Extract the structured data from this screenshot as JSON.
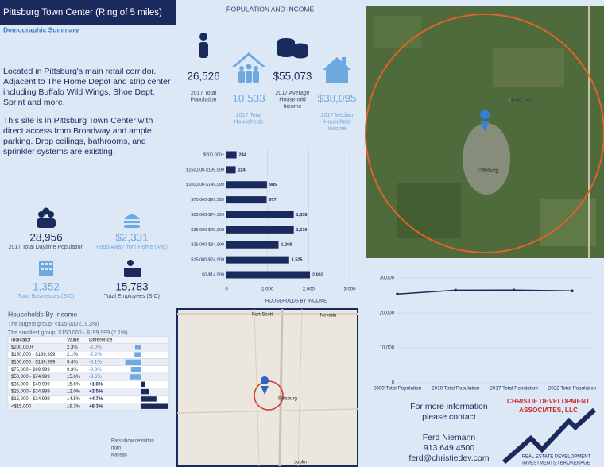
{
  "header": {
    "title": "Pittsburg Town Center (Ring of 5 miles)",
    "subtitle": "Demographic Summary"
  },
  "description": [
    [
      "Located in Pittsburg's main retail corridor.",
      "Adjacent to The Home Depot and strip center",
      "including Buffalo Wild Wings, Shoe Dept,",
      "Sprint and more."
    ],
    [
      "This site is in Pittsburg Town Center with",
      "direct access from Broadway and ample",
      "parking. Drop ceilings, bathrooms, and",
      "sprinkler systems are existing."
    ]
  ],
  "section_title": "POPULATION AND INCOME",
  "top_stats": [
    {
      "value": "26,526",
      "label": [
        "2017 Total",
        "Population"
      ]
    },
    {
      "value": "10,533",
      "label": [
        "2017 Total",
        "Households"
      ]
    },
    {
      "value": "$55,073",
      "label": [
        "2017 Average",
        "Household",
        "Income"
      ]
    },
    {
      "value": "$38,095",
      "label": [
        "2017 Median",
        "Household",
        "Income"
      ]
    }
  ],
  "lower_stats": [
    {
      "value": "28,956",
      "label": "2017 Total Daytime Population"
    },
    {
      "value": "$2,331",
      "label": "Food Away from Home (Avg)"
    },
    {
      "value": "1,352",
      "label": "Total Businesses (SIC)"
    },
    {
      "value": "15,783",
      "label": "Total Employees (SIC)"
    }
  ],
  "chart_data": [
    {
      "type": "bar",
      "orientation": "horizontal",
      "xlabel": "HOUSEHOLDS BY INCOME",
      "categories": [
        "$200,000+",
        "$150,000-$199,999",
        "$100,000-$149,999",
        "$75,000-$99,999",
        "$50,000-$74,999",
        "$35,000-$49,999",
        "$25,000-$34,999",
        "$15,000-$24,999",
        "$0-$14,999"
      ],
      "values": [
        244,
        224,
        985,
        977,
        1638,
        1639,
        1268,
        1525,
        2032
      ],
      "value_labels": [
        "244",
        "224",
        "985",
        "977",
        "1,638",
        "1,639",
        "1,268",
        "1,525",
        "2,032"
      ],
      "color": "#1b2a5c",
      "xlim": [
        0,
        3000
      ],
      "xticks": [
        0,
        {
          "value": 1000,
          "label": "1,000"
        },
        {
          "value": 2000,
          "label": "2,000"
        },
        {
          "value": 3000,
          "label": "3,000"
        }
      ],
      "grid": true
    },
    {
      "type": "line",
      "categories": [
        "2000 Total Population",
        "2010 Total Population",
        "2017 Total Population",
        "2022 Total Population"
      ],
      "values": [
        25400,
        26500,
        26526,
        26300
      ],
      "color": "#1b2a5c",
      "ylim": [
        0,
        30000
      ],
      "yticks": [
        0,
        {
          "value": 10000,
          "label": "10,000"
        },
        {
          "value": 20000,
          "label": "20,000"
        },
        {
          "value": 30000,
          "label": "30,000"
        }
      ],
      "grid": true
    }
  ],
  "satellite_map": {
    "labels": [
      "Frontenac",
      "Pittsburg"
    ]
  },
  "road_map": {
    "labels": [
      "Fort Scott",
      "Nevada",
      "Pittsburg",
      "Joplin"
    ]
  },
  "income_table": {
    "title": "Households By Income",
    "notes": [
      "The largest group: <$15,000 (19.3%)",
      "The smallest group: $150,000 - $199,999 (2.1%)"
    ],
    "columns": [
      "Indicator",
      "Value",
      "Difference"
    ],
    "rows": [
      [
        "$200,000+",
        "2.3%",
        {
          "value": -2.0,
          "label": "-2.0%"
        }
      ],
      [
        "$150,000 - $199,999",
        "2.1%",
        {
          "value": -2.2,
          "label": "-2.2%"
        }
      ],
      [
        "$100,000 - $149,999",
        "9.4%",
        {
          "value": -5.1,
          "label": "-5.1%"
        }
      ],
      [
        "$75,000 - $99,999",
        "9.3%",
        {
          "value": -3.3,
          "label": "-3.3%"
        }
      ],
      [
        "$50,000 - $74,999",
        "15.6%",
        {
          "value": -3.6,
          "label": "-3.6%"
        }
      ],
      [
        "$35,000 - $49,999",
        "15.6%",
        {
          "value": 1.0,
          "label": "+1.0%"
        }
      ],
      [
        "$25,000 - $34,999",
        "12.0%",
        {
          "value": 2.5,
          "label": "+2.5%"
        }
      ],
      [
        "$15,000 - $24,999",
        "14.5%",
        {
          "value": 4.7,
          "label": "+4.7%"
        }
      ],
      [
        "<$15,000",
        "19.3%",
        {
          "value": 8.3,
          "label": "+8.3%"
        }
      ]
    ],
    "footnote": [
      "Bars show deviation",
      "from",
      "Kansas"
    ]
  },
  "contact": {
    "lines": [
      "For more information",
      "please contact"
    ],
    "name": "Ferd Niemann",
    "phone": "913.649.4500",
    "email": "ferd@christiedev.com"
  },
  "logo": {
    "name": [
      "CHRISTIE DEVELOPMENT",
      "ASSOCIATES, LLC"
    ],
    "tagline": [
      "REAL ESTATE DEVELOPMENT",
      "INVESTMENTS / BROKERAGE"
    ]
  }
}
